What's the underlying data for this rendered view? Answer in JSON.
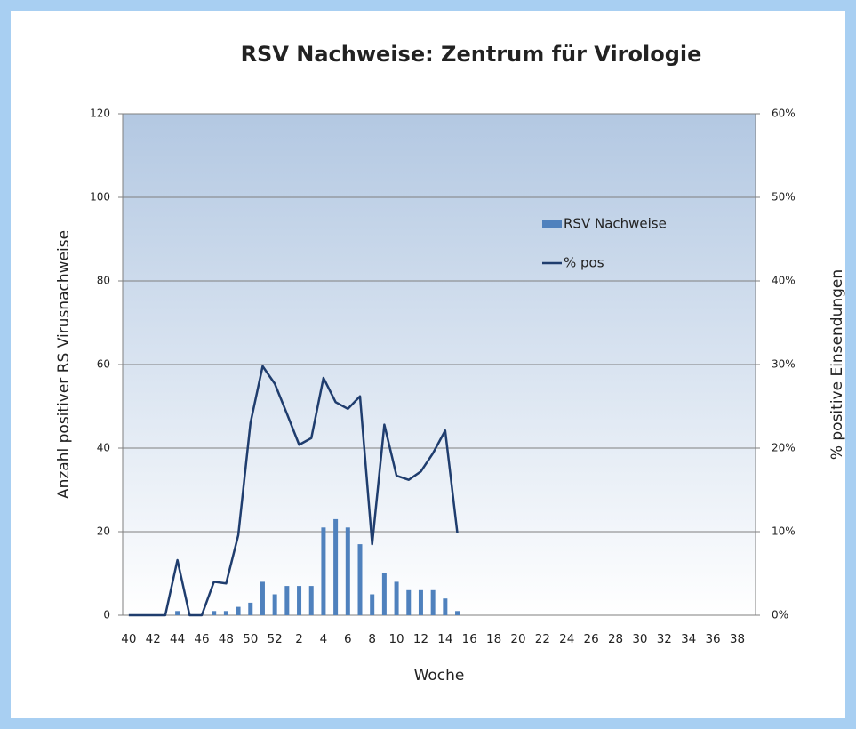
{
  "chart_data": {
    "type": "bar-line",
    "title": "RSV Nachweise: Zentrum für Virologie",
    "x_label": "Woche",
    "y_label": "Anzahl positiver  RS Virusnachweise",
    "y2_label": "% positive Einsendungen",
    "categories": [
      "40",
      null,
      "42",
      null,
      "44",
      null,
      "46",
      null,
      "48",
      null,
      "50",
      null,
      "52",
      null,
      "2",
      null,
      "4",
      null,
      "6",
      null,
      "8",
      null,
      "10",
      null,
      "12",
      null,
      "14",
      null,
      "16",
      null,
      "18",
      null,
      "20",
      null,
      "22",
      null,
      "24",
      null,
      "26",
      null,
      "28",
      null,
      "30",
      null,
      "32",
      null,
      "34",
      null,
      "36",
      null,
      "38",
      null
    ],
    "ylim": [
      0,
      120
    ],
    "yticks": [
      0,
      20,
      40,
      60,
      80,
      100,
      120
    ],
    "y2lim": [
      0,
      60
    ],
    "y2ticks": [
      {
        "value": 0,
        "label": "0%"
      },
      {
        "value": 10,
        "label": "10%"
      },
      {
        "value": 20,
        "label": "20%"
      },
      {
        "value": 30,
        "label": "30%"
      },
      {
        "value": 40,
        "label": "40%"
      },
      {
        "value": 50,
        "label": "50%"
      },
      {
        "value": 60,
        "label": "60%"
      }
    ],
    "grid": true,
    "series": [
      {
        "name": "RSV Nachweise",
        "kind": "bar",
        "color": "#4f81bd",
        "values": [
          0,
          0,
          0,
          0,
          1,
          0,
          0,
          1,
          1,
          2,
          3,
          8,
          5,
          7,
          7,
          7,
          21,
          23,
          21,
          17,
          5,
          10,
          8,
          6,
          6,
          6,
          4,
          1,
          null,
          null,
          null,
          null,
          null,
          null,
          null,
          null,
          null,
          null,
          null,
          null,
          null,
          null,
          null,
          null,
          null,
          null,
          null,
          null,
          null,
          null,
          null,
          null
        ]
      },
      {
        "name": "% pos",
        "kind": "line",
        "axis": "y2",
        "color": "#1f3d6e",
        "values": [
          0,
          0,
          0,
          0,
          6.6,
          0,
          0,
          4,
          3.8,
          9.6,
          23,
          29.8,
          27.7,
          24.1,
          20.4,
          21.2,
          28.4,
          25.5,
          24.7,
          26.2,
          8.5,
          22.8,
          16.7,
          16.2,
          17.2,
          19.4,
          22.1,
          9.8,
          null,
          null,
          null,
          null,
          null,
          null,
          null,
          null,
          null,
          null,
          null,
          null,
          null,
          null,
          null,
          null,
          null,
          null,
          null,
          null,
          null,
          null,
          null,
          null
        ]
      }
    ]
  }
}
